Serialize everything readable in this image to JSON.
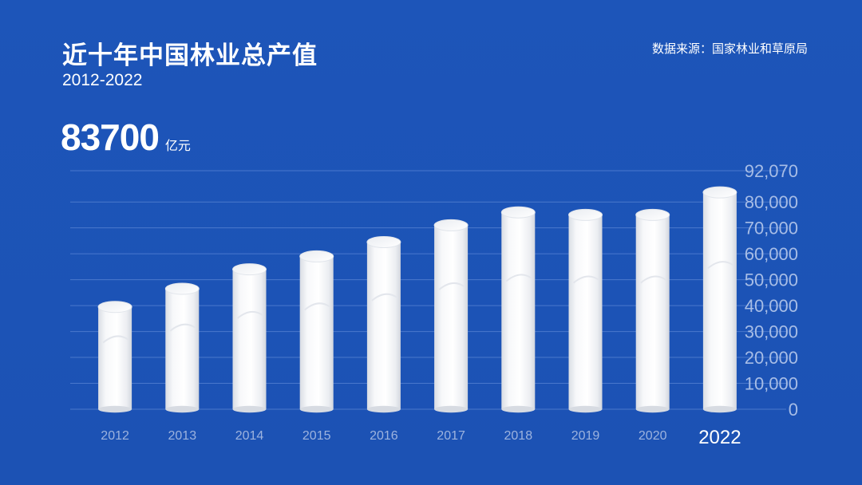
{
  "header": {
    "title": "近十年中国林业总产值",
    "subtitle": "2012-2022",
    "source": "数据来源：国家林业和草原局",
    "headline_value": "83700",
    "headline_unit": "亿元"
  },
  "colors": {
    "background": "#1e56b8",
    "gridline": "#4a78cc",
    "bar": "#f4f5f7",
    "bar_shade": "#d7dbe2",
    "tick_label": "#a7bde6",
    "highlight_label": "#ffffff"
  },
  "chart_data": {
    "type": "bar",
    "title": "近十年中国林业总产值",
    "subtitle": "2012-2022",
    "categories": [
      "2012",
      "2013",
      "2014",
      "2015",
      "2016",
      "2017",
      "2018",
      "2019",
      "2020",
      "2022"
    ],
    "values": [
      39500,
      46500,
      54000,
      59000,
      64500,
      71000,
      76000,
      75000,
      75000,
      83700
    ],
    "highlight_category": "2022",
    "ylim": [
      0,
      92070
    ],
    "yticks": [
      0,
      10000,
      20000,
      30000,
      40000,
      50000,
      60000,
      70000,
      80000,
      92070
    ],
    "ytick_labels": [
      "0",
      "10,000",
      "20,000",
      "30,000",
      "40,000",
      "50,000",
      "60,000",
      "70,000",
      "80,000",
      "92,070"
    ],
    "y_axis_position": "right",
    "grid": true,
    "legend": "none",
    "unit": "亿元"
  }
}
